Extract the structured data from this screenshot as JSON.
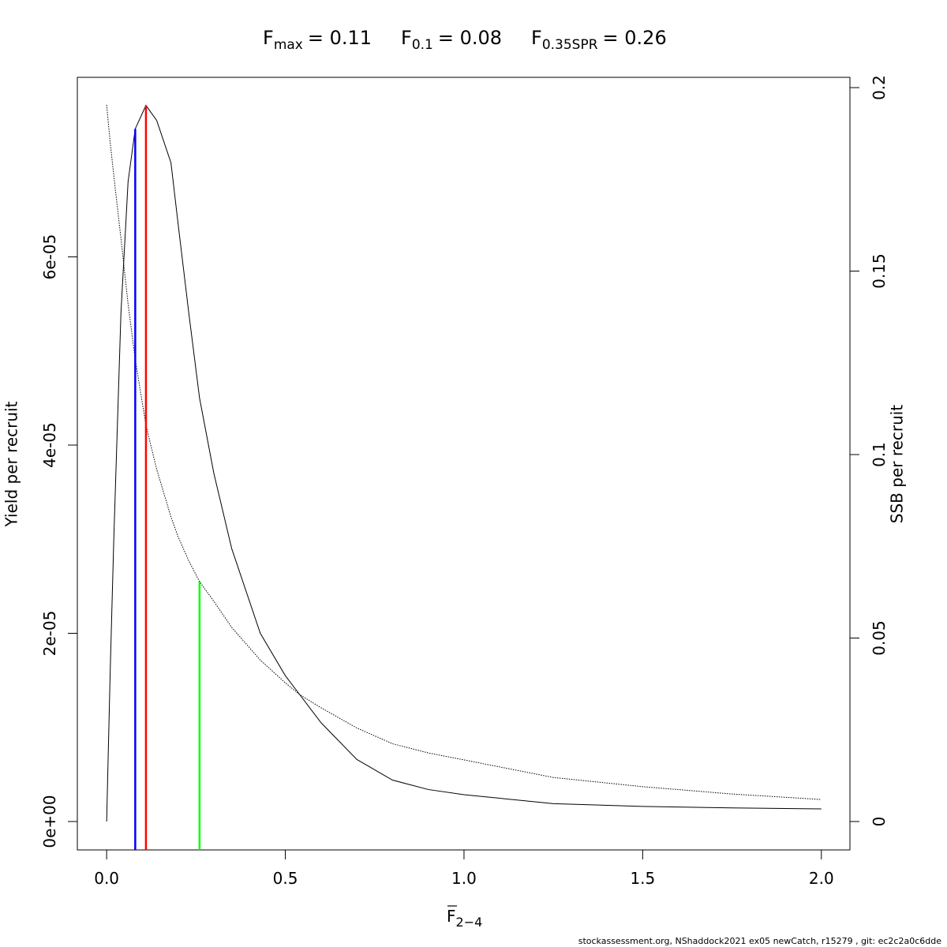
{
  "chart_data": {
    "type": "line",
    "title": [
      {
        "symbol": "F",
        "subscript": "max",
        "label": "= 0.11",
        "value": 0.11,
        "y": 7.61e-05,
        "axis": "y",
        "color": "#ff0000"
      },
      {
        "symbol": "F",
        "subscript": "0.1",
        "label": "= 0.08",
        "value": 0.08,
        "y": 7.36e-05,
        "axis": "y",
        "color": "#0000ff"
      },
      {
        "symbol": "F",
        "subscript": "0.35SPR",
        "label": "= 0.26",
        "value": 0.26,
        "y": 0.0654,
        "axis": "y2",
        "color": "#00ff00"
      }
    ],
    "x_label": {
      "symbol": "F",
      "subscript": "2−4"
    },
    "y_label": "Yield per recruit",
    "y2_label": "SSB per recruit",
    "footer": "stockassessment.org, NShaddock2021 ex05 newCatch, r15279 , git: ec2c2a0c6dde",
    "x": [
      0,
      0.01,
      0.02,
      0.04,
      0.06,
      0.08,
      0.11,
      0.14,
      0.18,
      0.2,
      0.23,
      0.26,
      0.3,
      0.35,
      0.43,
      0.5,
      0.54,
      0.6,
      0.7,
      0.8,
      0.9,
      1.0,
      1.25,
      1.5,
      1.75,
      2.0
    ],
    "series": [
      {
        "color": "#000000",
        "style": "solid",
        "axis": "y",
        "values": [
          0,
          1.6e-05,
          3e-05,
          5.4e-05,
          6.8e-05,
          7.36e-05,
          7.61e-05,
          7.45e-05,
          7e-05,
          6.35e-05,
          5.4e-05,
          4.5e-05,
          3.7e-05,
          2.9e-05,
          2e-05,
          1.55e-05,
          1.35e-05,
          1.05e-05,
          6.6e-06,
          4.4e-06,
          3.4e-06,
          2.85e-06,
          1.9e-06,
          1.6e-06,
          1.45e-06,
          1.34e-06
        ]
      },
      {
        "color": "#000000",
        "style": "dotted",
        "axis": "y2",
        "values": [
          0.1953,
          0.185,
          0.176,
          0.159,
          0.141,
          0.126,
          0.108,
          0.096,
          0.083,
          0.0776,
          0.071,
          0.0654,
          0.06,
          0.0529,
          0.044,
          0.0378,
          0.0346,
          0.031,
          0.0255,
          0.0212,
          0.0187,
          0.0168,
          0.012,
          0.0095,
          0.0075,
          0.006
        ]
      }
    ],
    "xlim": [
      -0.082,
      2.08
    ],
    "xticks": [
      {
        "value": 0,
        "label": "0.0"
      },
      0.5,
      {
        "value": 1,
        "label": "1.0"
      },
      1.5,
      {
        "value": 2,
        "label": "2.0"
      }
    ],
    "ylim": [
      -3.02e-06,
      7.908e-05
    ],
    "yticks": [
      {
        "value": 0,
        "label": "0e+00"
      },
      {
        "value": 2e-05,
        "label": "2e-05"
      },
      {
        "value": 4e-05,
        "label": "4e-05"
      },
      {
        "value": 6e-05,
        "label": "6e-05"
      }
    ],
    "y2lim": [
      -0.00774,
      0.2028
    ],
    "y2ticks": [
      0,
      0.05,
      0.1,
      0.15,
      0.2
    ]
  }
}
